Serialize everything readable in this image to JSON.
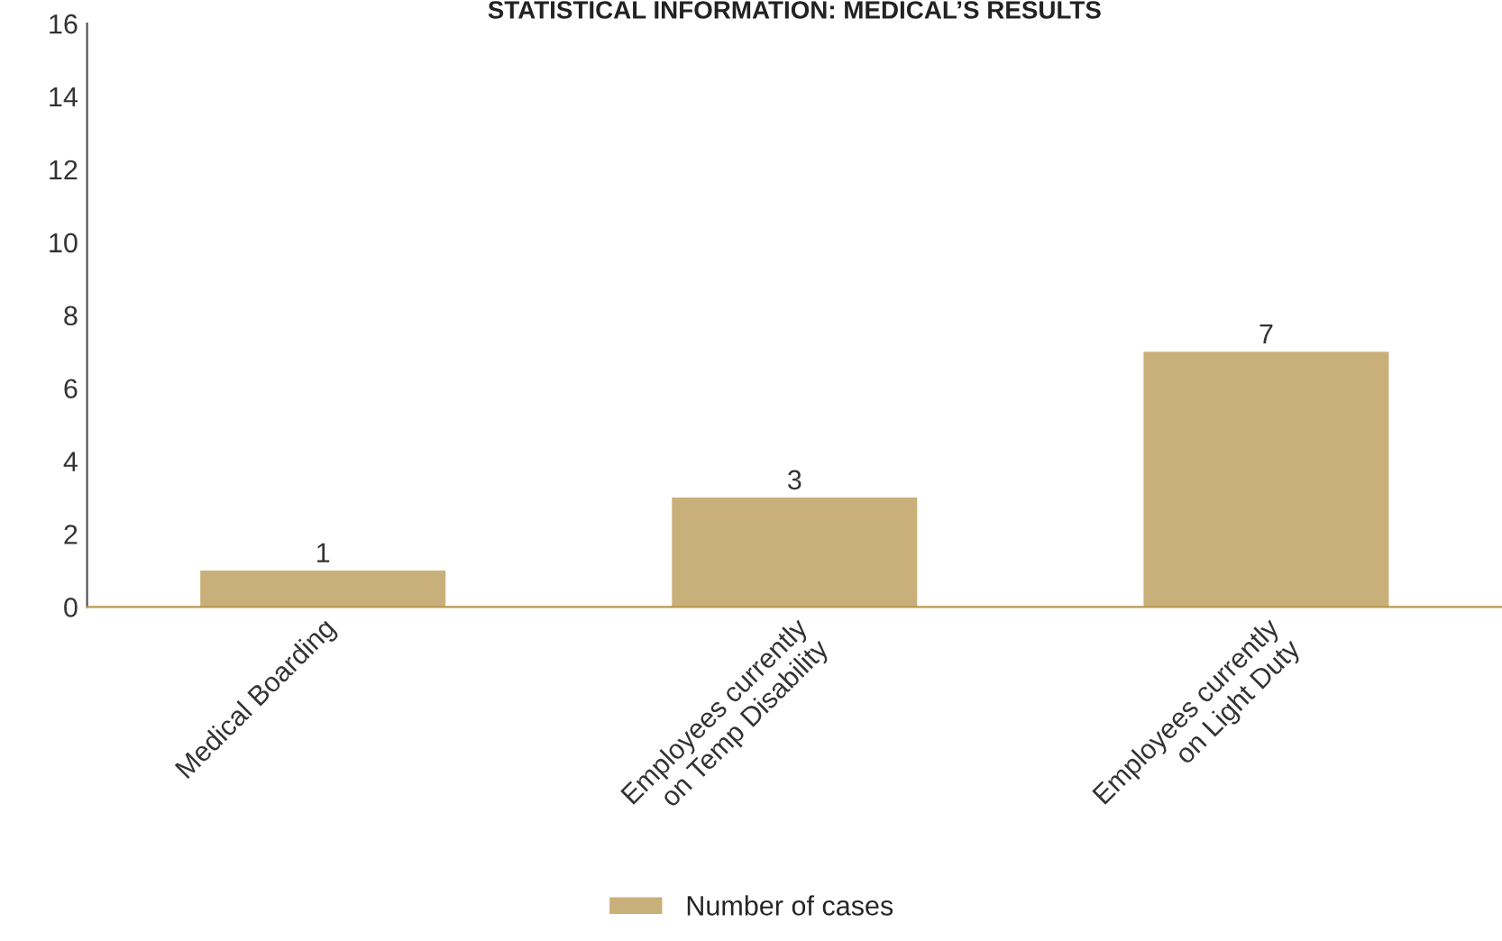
{
  "chart_data": {
    "type": "bar",
    "title": "STATISTICAL INFORMATION: MEDICAL’S RESULTS",
    "categories": [
      "Medical Boarding",
      "Employees currently\non Temp Disability",
      "Employees currently\non Light Duty"
    ],
    "series": [
      {
        "name": "Number of cases",
        "color": "#c9b07a",
        "values": [
          1,
          3,
          7
        ]
      }
    ],
    "ylim": [
      0,
      16
    ],
    "yticks": [
      0,
      2,
      4,
      6,
      8,
      10,
      12,
      14,
      16
    ],
    "data_labels": true,
    "grid": false,
    "legend": "bottom"
  }
}
